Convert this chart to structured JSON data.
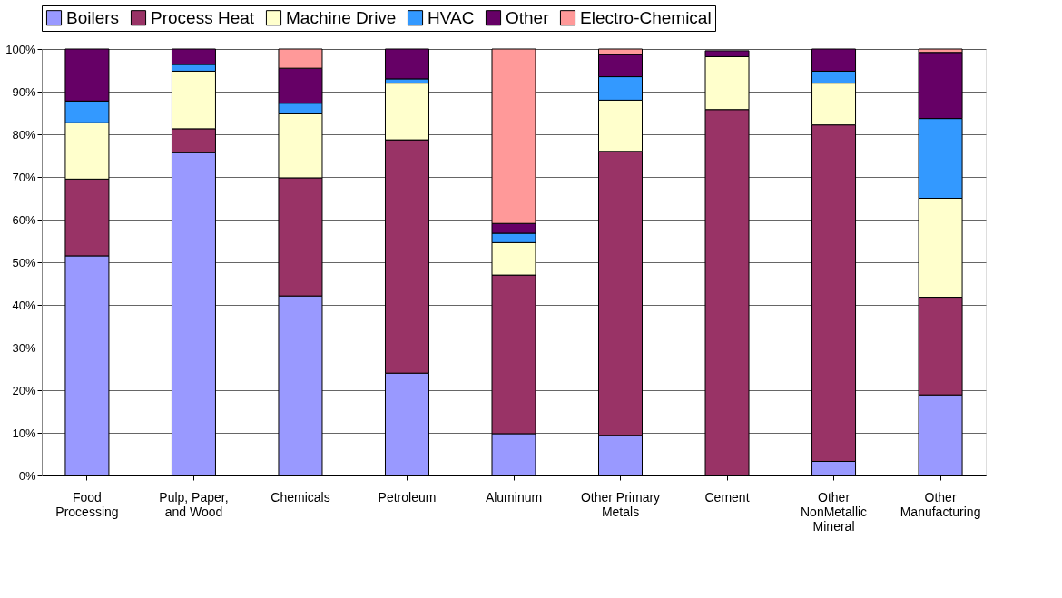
{
  "chart_data": {
    "type": "bar",
    "stacked": true,
    "categories": [
      "Food Processing",
      "Pulp, Paper, and Wood",
      "Chemicals",
      "Petroleum",
      "Aluminum",
      "Other Primary Metals",
      "Cement",
      "Other NonMetallic Mineral",
      "Other Manufacturing"
    ],
    "series": [
      {
        "name": "Boilers",
        "color": "#9999ff",
        "values": [
          51.5,
          75.7,
          42.1,
          24,
          9.8,
          9.4,
          null,
          3.3,
          18.9
        ]
      },
      {
        "name": "Process Heat",
        "color": "#993366",
        "values": [
          18,
          5.6,
          27.7,
          54.7,
          37.2,
          66.6,
          85.8,
          78.9,
          22.9
        ]
      },
      {
        "name": "Machine Drive",
        "color": "#ffffcc",
        "values": [
          13.2,
          13.5,
          15,
          13.3,
          7.6,
          12,
          12.4,
          9.8,
          23.2
        ]
      },
      {
        "name": "HVAC",
        "color": "#3399ff",
        "values": [
          5.1,
          1.6,
          2.5,
          1,
          2.2,
          5.5,
          null,
          2.8,
          18.7
        ]
      },
      {
        "name": "Other",
        "color": "#660066",
        "values": [
          12.2,
          3.6,
          8.2,
          7,
          2.3,
          5.2,
          1.4,
          5.2,
          15.5
        ]
      },
      {
        "name": "Electro-Chemical",
        "color": "#ff9999",
        "values": [
          0,
          0,
          4.5,
          0,
          40.9,
          1.3,
          0,
          0,
          0.8
        ]
      }
    ],
    "ylim": [
      0,
      100
    ],
    "yticks": [
      {
        "value": 0,
        "label": "0%"
      },
      {
        "value": 10,
        "label": "10%"
      },
      {
        "value": 20,
        "label": "20%"
      },
      {
        "value": 30,
        "label": "30%"
      },
      {
        "value": 40,
        "label": "40%"
      },
      {
        "value": 50,
        "label": "50%"
      },
      {
        "value": 60,
        "label": "60%"
      },
      {
        "value": 70,
        "label": "70%"
      },
      {
        "value": 80,
        "label": "80%"
      },
      {
        "value": 90,
        "label": "90%"
      },
      {
        "value": 100,
        "label": "100%"
      }
    ],
    "grid": "y",
    "legend": "top"
  }
}
